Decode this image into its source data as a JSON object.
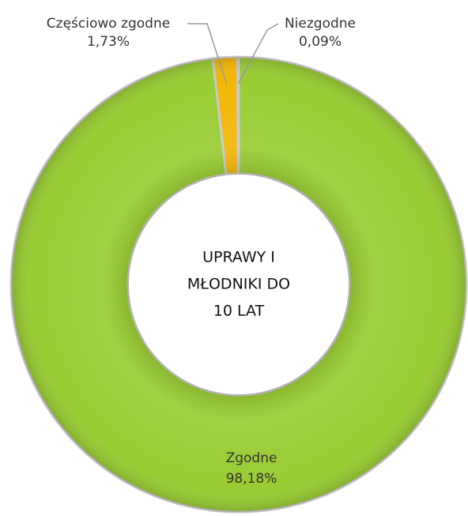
{
  "chart_data": {
    "type": "donut",
    "center_text": [
      "UPRAWY I",
      "MŁODNIKI DO",
      "10 LAT"
    ],
    "categories": [
      "Zgodne",
      "Częściowo zgodne",
      "Niezgodne"
    ],
    "values": [
      98.18,
      1.73,
      0.09
    ],
    "value_labels": [
      "98,18%",
      "1,73%",
      "0,09%"
    ],
    "colors": [
      "#99cc33",
      "#f2b705",
      "#4d4d3a"
    ]
  }
}
